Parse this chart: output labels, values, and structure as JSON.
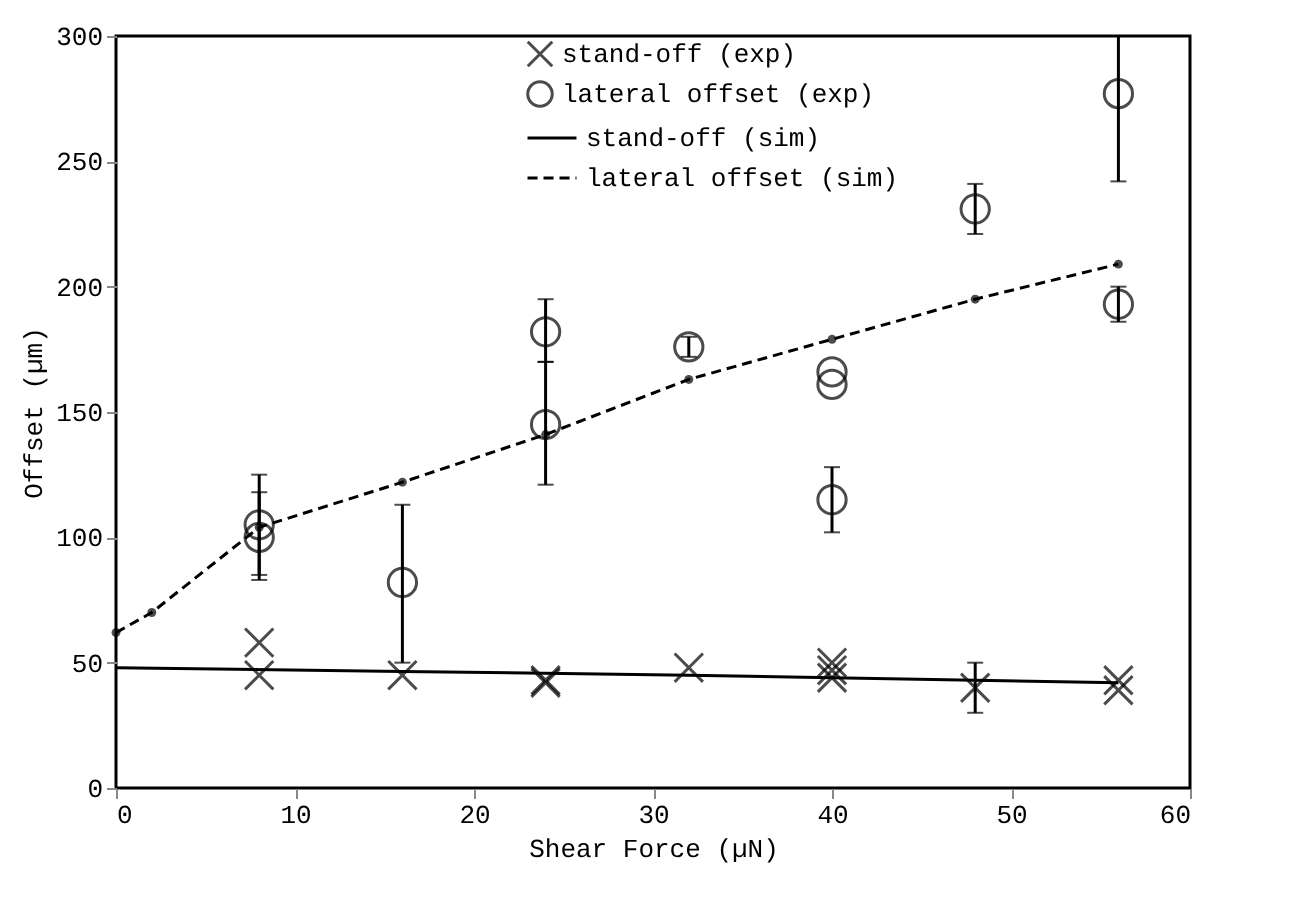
{
  "chart_data": {
    "type": "scatter",
    "xlabel": "Shear Force (µN)",
    "ylabel": "Offset (µm)",
    "xlim": [
      0,
      60
    ],
    "ylim": [
      0,
      300
    ],
    "xticks": [
      0,
      10,
      20,
      30,
      40,
      50,
      60
    ],
    "yticks": [
      0,
      50,
      100,
      150,
      200,
      250,
      300
    ],
    "grid": false,
    "legend": "top right",
    "series": [
      {
        "name": "stand-off (exp)",
        "marker": "cross",
        "color": "#000000",
        "x": [
          8,
          8,
          16,
          24,
          24,
          32,
          40,
          40,
          40,
          48,
          56,
          56
        ],
        "values": [
          58,
          45,
          45,
          43,
          42,
          48,
          50,
          44,
          47,
          40,
          43,
          39
        ],
        "errors": [
          null,
          null,
          null,
          null,
          null,
          null,
          null,
          null,
          null,
          [
            30,
            50
          ],
          null,
          null
        ]
      },
      {
        "name": "lateral offset (exp)",
        "marker": "circle",
        "color": "#000000",
        "x": [
          8,
          8,
          16,
          24,
          24,
          32,
          40,
          40,
          40,
          48,
          56,
          56
        ],
        "values": [
          105,
          100,
          82,
          145,
          182,
          176,
          166,
          161,
          115,
          231,
          277,
          193
        ],
        "errors": [
          [
            85,
            125
          ],
          [
            83,
            118
          ],
          [
            50,
            113
          ],
          [
            121,
            170
          ],
          [
            170,
            195
          ],
          [
            172,
            180
          ],
          null,
          null,
          [
            102,
            128
          ],
          [
            221,
            241
          ],
          [
            242,
            300
          ],
          [
            186,
            200
          ]
        ]
      },
      {
        "name": "stand-off (sim)",
        "type": "line",
        "marker": "none",
        "line_style": "solid",
        "color": "#000000",
        "x": [
          0,
          16,
          32,
          40,
          56
        ],
        "values": [
          48,
          46.5,
          45,
          44,
          42
        ]
      },
      {
        "name": "lateral offset (sim)",
        "type": "line",
        "marker": "circle",
        "line_style": "dashed",
        "color": "#000000",
        "x": [
          0,
          2,
          8,
          16,
          24,
          32,
          40,
          48,
          56
        ],
        "values": [
          62,
          70,
          104,
          122,
          141,
          163,
          179,
          195,
          209
        ]
      }
    ]
  }
}
